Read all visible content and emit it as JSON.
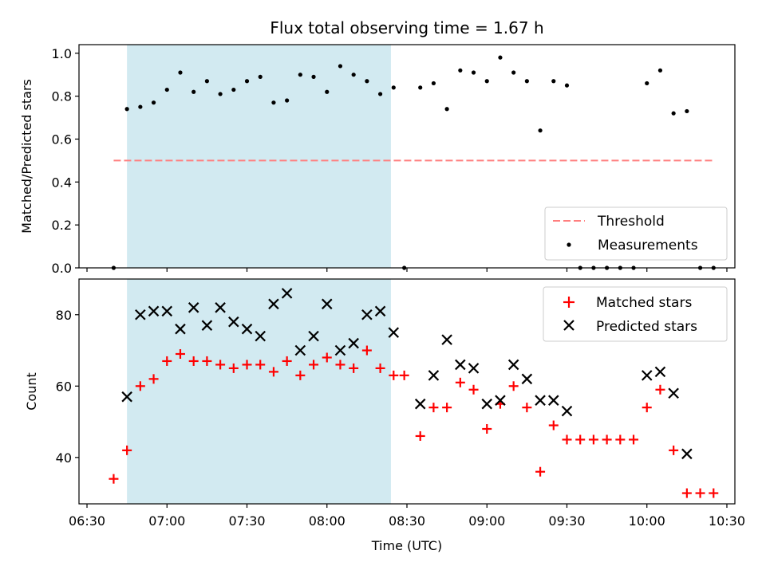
{
  "chart_data": [
    {
      "type": "scatter",
      "title": "Flux total observing time = 1.67 h",
      "xlabel": "",
      "ylabel": "Matched/Predicted stars",
      "xlim": [
        "06:27",
        "10:33"
      ],
      "ylim": [
        0,
        1.04
      ],
      "yticks": [
        "0.0",
        "0.2",
        "0.4",
        "0.6",
        "0.8",
        "1.0"
      ],
      "shaded_interval": [
        "06:45",
        "08:24"
      ],
      "shade_color": "#add8e6",
      "legend": {
        "placement": "lower right",
        "entries": [
          "Threshold",
          "Measurements"
        ]
      },
      "threshold": {
        "name": "Threshold",
        "value": 0.5,
        "x_range": [
          "06:40",
          "10:25"
        ],
        "color": "#ff7f7f",
        "style": "dashed"
      },
      "series": [
        {
          "name": "Measurements",
          "color": "#000000",
          "marker": "point",
          "x": [
            "06:40",
            "06:45",
            "06:50",
            "06:55",
            "07:00",
            "07:05",
            "07:10",
            "07:15",
            "07:20",
            "07:25",
            "07:30",
            "07:35",
            "07:40",
            "07:45",
            "07:50",
            "07:55",
            "08:00",
            "08:05",
            "08:10",
            "08:15",
            "08:20",
            "08:25",
            "08:29",
            "08:35",
            "08:40",
            "08:45",
            "08:50",
            "08:55",
            "09:00",
            "09:05",
            "09:10",
            "09:15",
            "09:20",
            "09:25",
            "09:30",
            "09:35",
            "09:40",
            "09:45",
            "09:50",
            "09:55",
            "10:00",
            "10:05",
            "10:10",
            "10:15",
            "10:20",
            "10:25"
          ],
          "y": [
            0.0,
            0.74,
            0.75,
            0.77,
            0.83,
            0.91,
            0.82,
            0.87,
            0.81,
            0.83,
            0.87,
            0.89,
            0.77,
            0.78,
            0.9,
            0.89,
            0.82,
            0.94,
            0.9,
            0.87,
            0.81,
            0.84,
            0.0,
            0.84,
            0.86,
            0.74,
            0.92,
            0.91,
            0.87,
            0.98,
            0.91,
            0.87,
            0.64,
            0.87,
            0.85,
            0.0,
            0.0,
            0.0,
            0.0,
            0.0,
            0.86,
            0.92,
            0.72,
            0.73,
            0.0,
            0.0
          ]
        }
      ]
    },
    {
      "type": "scatter",
      "title": "",
      "xlabel": "Time (UTC)",
      "ylabel": "Count",
      "xlim": [
        "06:27",
        "10:33"
      ],
      "ylim": [
        27,
        90
      ],
      "yticks": [
        "40",
        "60",
        "80"
      ],
      "xticks": [
        "06:30",
        "07:00",
        "07:30",
        "08:00",
        "08:30",
        "09:00",
        "09:30",
        "10:00",
        "10:30"
      ],
      "shaded_interval": [
        "06:45",
        "08:24"
      ],
      "shade_color": "#add8e6",
      "legend": {
        "placement": "upper right",
        "entries": [
          "Matched stars",
          "Predicted stars"
        ]
      },
      "series": [
        {
          "name": "Matched stars",
          "color": "#ff0000",
          "marker": "plus",
          "x": [
            "06:40",
            "06:45",
            "06:50",
            "06:55",
            "07:00",
            "07:05",
            "07:10",
            "07:15",
            "07:20",
            "07:25",
            "07:30",
            "07:35",
            "07:40",
            "07:45",
            "07:50",
            "07:55",
            "08:00",
            "08:05",
            "08:10",
            "08:15",
            "08:20",
            "08:25",
            "08:29",
            "08:35",
            "08:40",
            "08:45",
            "08:50",
            "08:55",
            "09:00",
            "09:05",
            "09:10",
            "09:15",
            "09:20",
            "09:25",
            "09:30",
            "09:35",
            "09:40",
            "09:45",
            "09:50",
            "09:55",
            "10:00",
            "10:05",
            "10:10",
            "10:15",
            "10:20",
            "10:25"
          ],
          "y": [
            34,
            42,
            60,
            62,
            67,
            69,
            67,
            67,
            66,
            65,
            66,
            66,
            64,
            67,
            63,
            66,
            68,
            66,
            65,
            70,
            65,
            63,
            63,
            46,
            54,
            54,
            61,
            59,
            48,
            55,
            60,
            54,
            36,
            49,
            45,
            45,
            45,
            45,
            45,
            45,
            54,
            59,
            42,
            30,
            30,
            30
          ]
        },
        {
          "name": "Predicted stars",
          "color": "#000000",
          "marker": "x",
          "x": [
            "06:45",
            "06:50",
            "06:55",
            "07:00",
            "07:05",
            "07:10",
            "07:15",
            "07:20",
            "07:25",
            "07:30",
            "07:35",
            "07:40",
            "07:45",
            "07:50",
            "07:55",
            "08:00",
            "08:05",
            "08:10",
            "08:15",
            "08:20",
            "08:25",
            "08:35",
            "08:40",
            "08:45",
            "08:50",
            "08:55",
            "09:00",
            "09:05",
            "09:10",
            "09:15",
            "09:20",
            "09:25",
            "09:30",
            "10:00",
            "10:05",
            "10:10",
            "10:15"
          ],
          "y": [
            57,
            80,
            81,
            81,
            76,
            82,
            77,
            82,
            78,
            76,
            74,
            83,
            86,
            70,
            74,
            83,
            70,
            72,
            80,
            81,
            75,
            55,
            63,
            73,
            66,
            65,
            55,
            56,
            66,
            62,
            56,
            56,
            53,
            63,
            64,
            58,
            41
          ]
        }
      ]
    }
  ]
}
